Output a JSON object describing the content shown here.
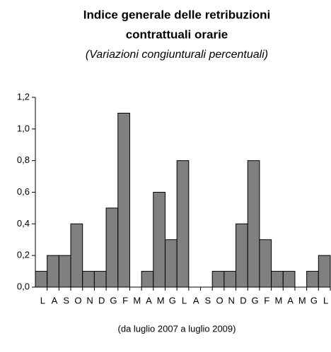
{
  "chart_data": {
    "type": "bar",
    "title": [
      "Indice generale delle retribuzioni",
      "contrattuali orarie"
    ],
    "subtitle": "(Variazioni congiunturali percentuali)",
    "x_label": "(da luglio  2007 a luglio 2009)",
    "categories": [
      "L",
      "A",
      "S",
      "O",
      "N",
      "D",
      "G",
      "F",
      "M",
      "A",
      "M",
      "G",
      "L",
      "A",
      "S",
      "O",
      "N",
      "D",
      "G",
      "F",
      "M",
      "A",
      "M",
      "G",
      "L"
    ],
    "values": [
      0.1,
      0.2,
      0.2,
      0.4,
      0.1,
      0.1,
      0.5,
      1.1,
      0,
      0.1,
      0.6,
      0.3,
      0.8,
      0,
      0,
      0.1,
      0.1,
      0.4,
      0.8,
      0.3,
      0.1,
      0.1,
      0,
      0.1,
      0.2
    ],
    "color": "#808080",
    "ylim": [
      0,
      1.2
    ],
    "yticks": [
      {
        "value": 0,
        "label": "0,0"
      },
      {
        "value": 0.2,
        "label": "0,2"
      },
      {
        "value": 0.4,
        "label": "0,4"
      },
      {
        "value": 0.6,
        "label": "0,6"
      },
      {
        "value": 0.8,
        "label": "0,8"
      },
      {
        "value": 1.0,
        "label": "1,0"
      },
      {
        "value": 1.2,
        "label": "1,2"
      }
    ],
    "grid": false
  }
}
